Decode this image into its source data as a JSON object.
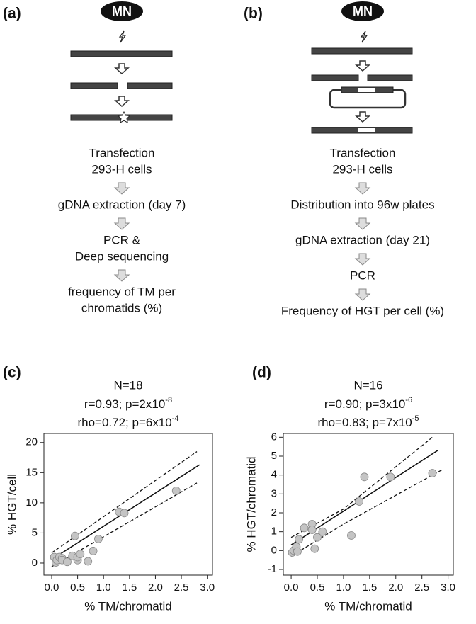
{
  "panels": [
    {
      "label": "(a)",
      "enzyme": "MN",
      "steps": [
        [
          "Transfection",
          "293-H cells"
        ],
        [
          "gDNA extraction (day 7)"
        ],
        [
          "PCR &",
          "Deep sequencing"
        ],
        [
          "frequency of TM per",
          "chromatids (%)"
        ]
      ]
    },
    {
      "label": "(b)",
      "enzyme": "MN",
      "steps": [
        [
          "Transfection",
          "293-H cells"
        ],
        [
          "Distribution into 96w plates"
        ],
        [
          "gDNA extraction (day 21)"
        ],
        [
          "PCR"
        ],
        [
          "Frequency of HGT per cell (%)"
        ]
      ]
    }
  ],
  "chart_data": [
    {
      "type": "scatter",
      "label": "(c)",
      "subtitle": "N=18",
      "stats": [
        {
          "text": "r=0.93; p=2x10",
          "exp": "-8"
        },
        {
          "text": "rho=0.72; p=6x10",
          "exp": "-4"
        }
      ],
      "x_label": "% TM/chromatid",
      "y_label": "% HGT/cell",
      "xlim": [
        -0.15,
        3.1
      ],
      "ylim": [
        -2,
        21.5
      ],
      "xticks": [
        {
          "value": 0,
          "label": "0.0"
        },
        {
          "value": 0.5,
          "label": "0.5"
        },
        {
          "value": 1,
          "label": "1.0"
        },
        {
          "value": 1.5,
          "label": "1.5"
        },
        {
          "value": 2,
          "label": "2.0"
        },
        {
          "value": 2.5,
          "label": "2.5"
        },
        {
          "value": 3,
          "label": "3.0"
        }
      ],
      "yticks": [
        0,
        5,
        10,
        15,
        20
      ],
      "point_color": "#c4c4c4",
      "points": {
        "x": [
          0.05,
          0.08,
          0.1,
          0.15,
          0.2,
          0.2,
          0.3,
          0.4,
          0.45,
          0.5,
          0.5,
          0.55,
          0.7,
          0.8,
          0.9,
          1.3,
          1.4,
          2.4
        ],
        "y": [
          1.0,
          0.1,
          0.5,
          1.0,
          0.8,
          0.5,
          0.2,
          1.2,
          4.5,
          0.5,
          1.0,
          1.5,
          0.3,
          2.0,
          4.0,
          8.5,
          8.3,
          12.0
        ]
      },
      "lines": [
        {
          "style": "solid",
          "x": [
            0,
            2.85
          ],
          "y": [
            0.6,
            16.3
          ]
        },
        {
          "style": "dashed",
          "x": [
            0,
            2.8
          ],
          "y": [
            1.7,
            18.5
          ]
        },
        {
          "style": "dashed",
          "x": [
            0,
            2.8
          ],
          "y": [
            -0.6,
            13.3
          ]
        }
      ]
    },
    {
      "type": "scatter",
      "label": "(d)",
      "subtitle": "N=16",
      "stats": [
        {
          "text": "r=0.90; p=3x10",
          "exp": "-6"
        },
        {
          "text": "rho=0.83; p=7x10",
          "exp": "-5"
        }
      ],
      "x_label": "% TM/chromatid",
      "y_label": "% HGT/chromatid",
      "xlim": [
        -0.15,
        3.1
      ],
      "ylim": [
        -1.3,
        6.2
      ],
      "xticks": [
        {
          "value": 0,
          "label": "0.0"
        },
        {
          "value": 0.5,
          "label": "0.5"
        },
        {
          "value": 1,
          "label": "1.0"
        },
        {
          "value": 1.5,
          "label": "1.5"
        },
        {
          "value": 2,
          "label": "2.0"
        },
        {
          "value": 2.5,
          "label": "2.5"
        },
        {
          "value": 3,
          "label": "3.0"
        }
      ],
      "yticks": [
        -1,
        0,
        1,
        2,
        3,
        4,
        5,
        6
      ],
      "point_color": "#c4c4c4",
      "points": {
        "x": [
          0.02,
          0.05,
          0.1,
          0.12,
          0.15,
          0.25,
          0.4,
          0.4,
          0.45,
          0.5,
          0.6,
          1.15,
          1.3,
          1.4,
          1.9,
          2.7
        ],
        "y": [
          -0.1,
          0.0,
          0.2,
          -0.05,
          0.6,
          1.2,
          1.4,
          1.1,
          0.1,
          0.7,
          1.0,
          0.8,
          2.6,
          3.9,
          3.9,
          4.1
        ]
      },
      "lines": [
        {
          "style": "solid",
          "x": [
            0,
            2.8
          ],
          "y": [
            0.3,
            5.3
          ]
        },
        {
          "style": "dashed",
          "x": [
            0,
            1,
            2.7
          ],
          "y": [
            0.7,
            2.2,
            6.0
          ]
        },
        {
          "style": "dashed",
          "x": [
            0,
            1,
            2.9
          ],
          "y": [
            -0.3,
            1.4,
            4.3
          ]
        }
      ]
    }
  ]
}
